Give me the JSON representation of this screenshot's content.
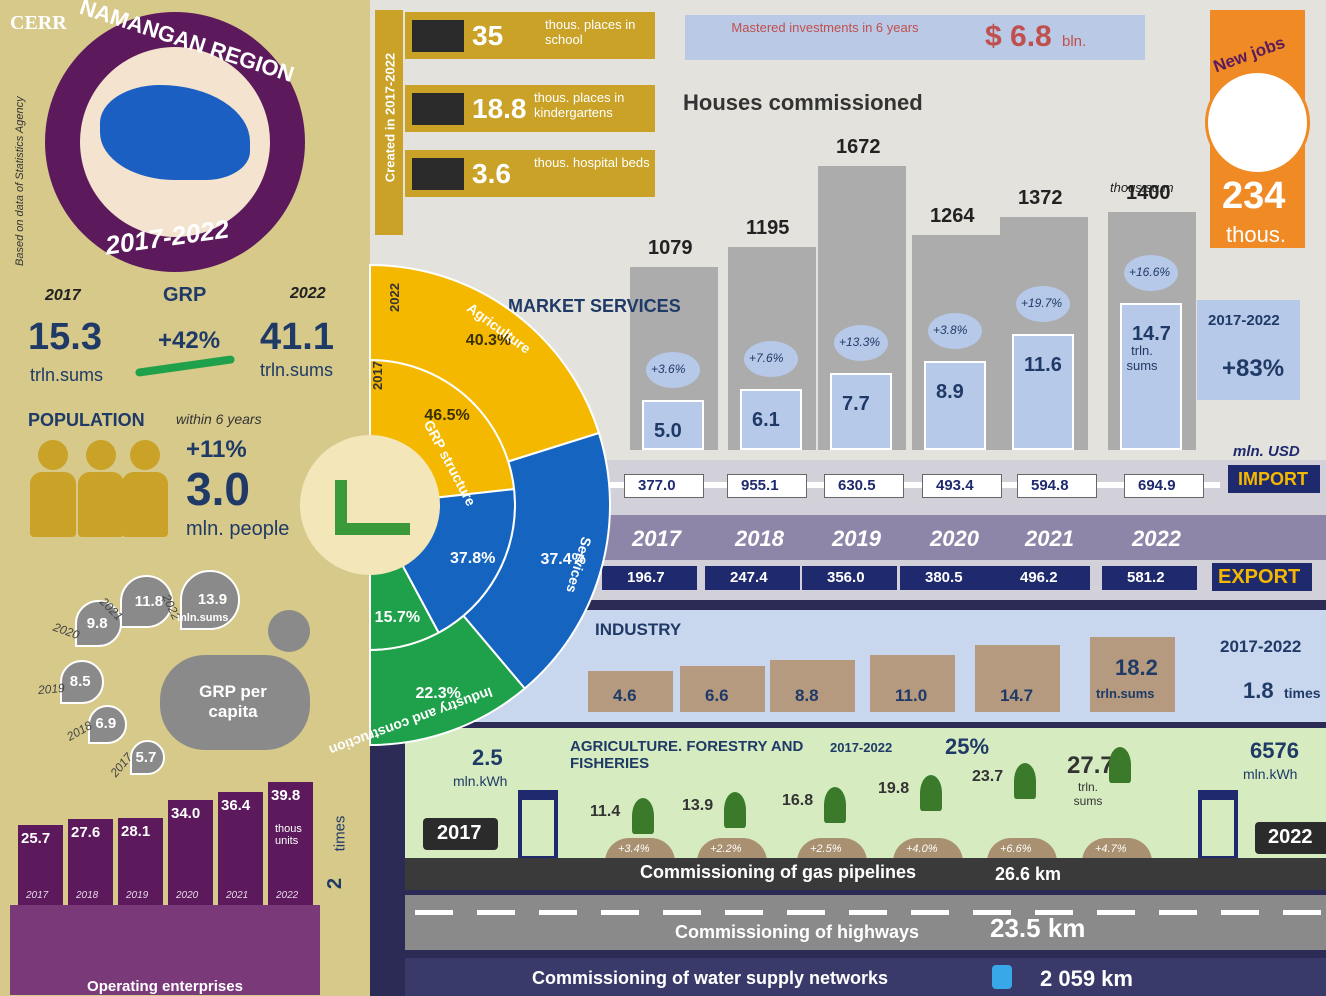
{
  "source_logo": "CERR",
  "source_note": "Based on data of Statistics Agency",
  "region": {
    "name": "NAMANGAN REGION",
    "period": "2017-2022"
  },
  "grp": {
    "label": "GRP",
    "year_start": "2017",
    "year_end": "2022",
    "value_start": "15.3",
    "value_end": "41.1",
    "unit_start": "trln.sums",
    "unit_end": "trln.sums",
    "growth": "+42%"
  },
  "population": {
    "label": "POPULATION",
    "note": "within 6 years",
    "growth": "+11%",
    "value": "3.0",
    "unit": "mln. people"
  },
  "grp_per_capita": {
    "label": "GRP per capita",
    "unit": "mln.sums",
    "items": [
      {
        "year": "2017",
        "value": "5.7"
      },
      {
        "year": "2018",
        "value": "6.9"
      },
      {
        "year": "2019",
        "value": "8.5"
      },
      {
        "year": "2020",
        "value": "9.8"
      },
      {
        "year": "2021",
        "value": "11.8"
      },
      {
        "year": "2022",
        "value": "13.9"
      }
    ]
  },
  "enterprises": {
    "label": "Operating enterprises",
    "unit": "thous units",
    "growth": "2",
    "growth_unit": "times",
    "items": [
      {
        "year": "2017",
        "value": "25.7"
      },
      {
        "year": "2018",
        "value": "27.6"
      },
      {
        "year": "2019",
        "value": "28.1"
      },
      {
        "year": "2020",
        "value": "34.0"
      },
      {
        "year": "2021",
        "value": "36.4"
      },
      {
        "year": "2022",
        "value": "39.8"
      }
    ]
  },
  "created": {
    "label": "Created in  2017-2022",
    "items": [
      {
        "value": "35",
        "text": "thous. places in school"
      },
      {
        "value": "18.8",
        "text": "thous. places in kindergartens"
      },
      {
        "value": "3.6",
        "text": "thous. hospital beds"
      }
    ]
  },
  "investments": {
    "label": "Mastered investments in 6 years",
    "value": "$ 6.8",
    "unit": "bln."
  },
  "new_jobs": {
    "label": "New jobs",
    "value": "234",
    "unit": "thous."
  },
  "houses": {
    "title": "Houses commissioned",
    "unit": "thous.sq.m",
    "values": [
      "1079",
      "1195",
      "1672",
      "1264",
      "1372",
      "1400"
    ]
  },
  "market_services": {
    "title": "MARKET SERVICES",
    "values": [
      "5.0",
      "6.1",
      "7.7",
      "8.9",
      "11.6",
      "14.7"
    ],
    "growth": [
      "+3.6%",
      "+7.6%",
      "+13.3%",
      "+3.8%",
      "+19.7%",
      "+16.6%"
    ],
    "unit": "trln. sums",
    "period": "2017-2022",
    "total_growth": "+83%"
  },
  "trade": {
    "unit": "mln. USD",
    "import_label": "IMPORT",
    "export_label": "EXPORT",
    "years": [
      "2017",
      "2018",
      "2019",
      "2020",
      "2021",
      "2022"
    ],
    "import": [
      "377.0",
      "955.1",
      "630.5",
      "493.4",
      "594.8",
      "694.9"
    ],
    "export": [
      "196.7",
      "247.4",
      "356.0",
      "380.5",
      "496.2",
      "581.2"
    ]
  },
  "grp_structure": {
    "label": "GRP structure",
    "year_inner": "2017",
    "year_outer": "2022",
    "sectors": [
      {
        "name": "Agriculture",
        "share_2017": "46.5%",
        "share_2022": "40.3%"
      },
      {
        "name": "Services",
        "share_2017": "37.8%",
        "share_2022": "37.4%"
      },
      {
        "name": "Industry and construction",
        "share_2017": "15.7%",
        "share_2022": "22.3%"
      }
    ]
  },
  "industry": {
    "title": "INDUSTRY",
    "values": [
      "4.6",
      "6.6",
      "8.8",
      "11.0",
      "14.7",
      "18.2"
    ],
    "unit": "trln.sums",
    "period": "2017-2022",
    "growth": "1.8",
    "growth_unit": "times"
  },
  "agriculture": {
    "title": "AGRICULTURE. FORESTRY AND FISHERIES",
    "period": "2017-2022",
    "growth": "25%",
    "values": [
      "11.4",
      "13.9",
      "16.8",
      "19.8",
      "23.7",
      "27.7"
    ],
    "growth_rates": [
      "+3.4%",
      "+2.2%",
      "+2.5%",
      "+4.0%",
      "+6.6%",
      "+4.7%"
    ],
    "unit": "trln. sums"
  },
  "electricity": {
    "start": {
      "year": "2017",
      "value": "2.5",
      "unit": "mln.kWh"
    },
    "end": {
      "year": "2022",
      "value": "6576",
      "unit": "mln.kWh"
    }
  },
  "infrastructure": [
    {
      "label": "Commissioning of gas pipelines",
      "value": "26.6 km"
    },
    {
      "label": "Commissioning of highways",
      "value": "23.5 km"
    },
    {
      "label": "Commissioning of water supply networks",
      "value": "2 059 km"
    }
  ]
}
